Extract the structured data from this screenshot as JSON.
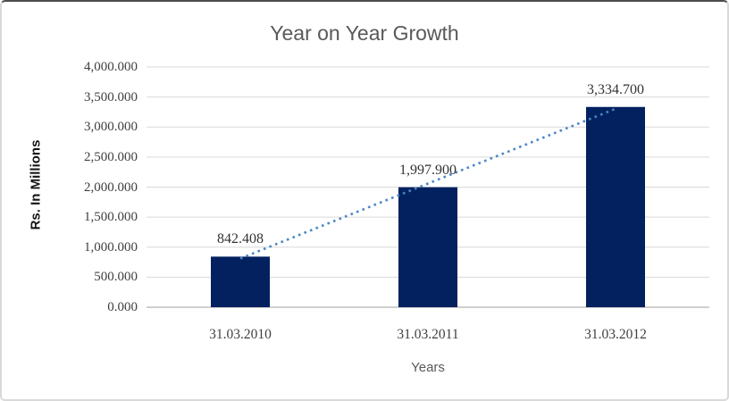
{
  "chart_data": {
    "type": "bar",
    "title": "Year on Year Growth",
    "xlabel": "Years",
    "ylabel": "Rs. In Millions",
    "categories": [
      "31.03.2010",
      "31.03.2011",
      "31.03.2012"
    ],
    "values": [
      842.408,
      1997.9,
      3334.7
    ],
    "data_labels": [
      "842.408",
      "1,997.900",
      "3,334.700"
    ],
    "ylim": [
      0,
      4000
    ],
    "ytick_step": 500,
    "ytick_labels": [
      "0.000",
      "500.000",
      "1,000.000",
      "1,500.000",
      "2,000.000",
      "2,500.000",
      "3,000.000",
      "3,500.000",
      "4,000.000"
    ],
    "grid": true,
    "legend": "none",
    "trendline": {
      "type": "linear",
      "style": "dotted"
    }
  },
  "colors": {
    "bar": "#03215f",
    "trendline": "#4a86c8",
    "gridline": "#d9d9d9",
    "axis_line": "#bfbfbf",
    "title_text": "#595959",
    "tick_text": "#3f3f3f",
    "data_label_text": "#333333",
    "axis_title_text": "#595959",
    "y_axis_title_text": "#141414"
  }
}
